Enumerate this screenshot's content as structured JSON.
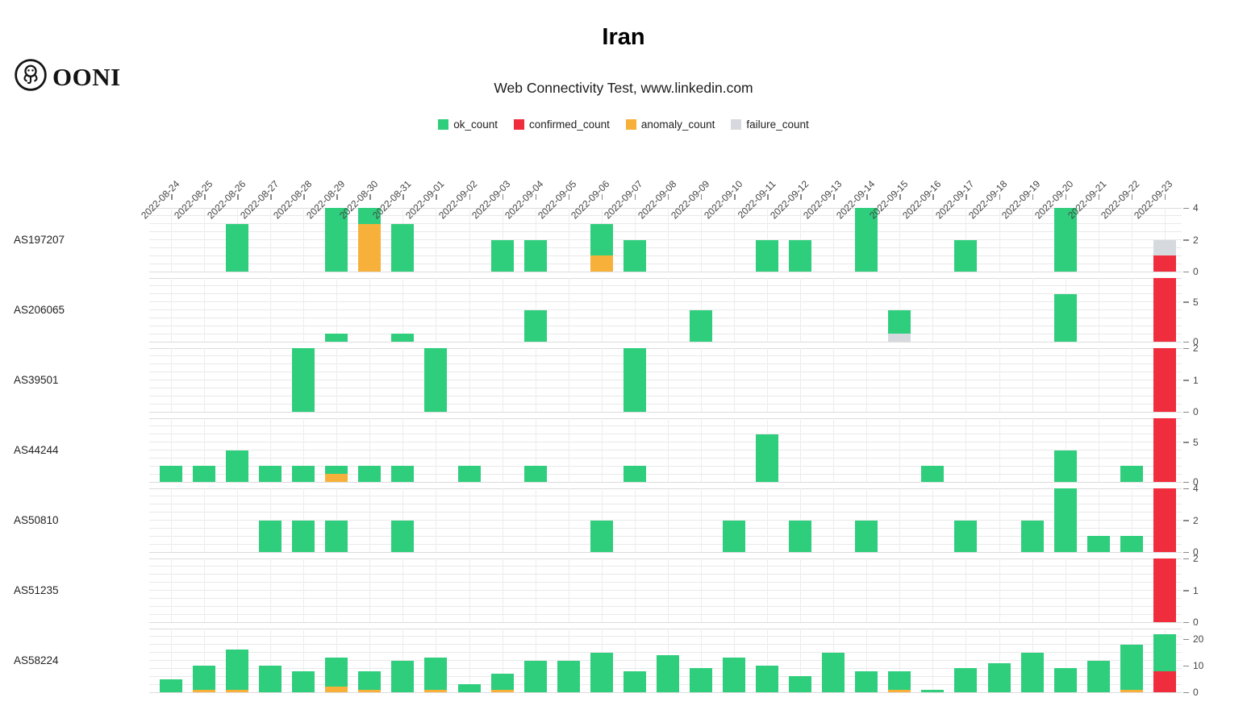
{
  "header": {
    "logo_text": "OONI",
    "title": "Iran",
    "subtitle": "Web Connectivity Test, www.linkedin.com"
  },
  "colors": {
    "ok": "#2fce7d",
    "confirmed": "#f02d3c",
    "anomaly": "#f7b13a",
    "failure": "#d6dade"
  },
  "legend": [
    {
      "label": "ok_count",
      "key": "ok"
    },
    {
      "label": "confirmed_count",
      "key": "confirmed"
    },
    {
      "label": "anomaly_count",
      "key": "anomaly"
    },
    {
      "label": "failure_count",
      "key": "failure"
    }
  ],
  "chart_data": {
    "type": "bar",
    "stacked": true,
    "grid": true,
    "legend_position": "top",
    "stack_order": [
      "confirmed",
      "anomaly",
      "failure",
      "ok"
    ],
    "x": [
      "2022-08-24",
      "2022-08-25",
      "2022-08-26",
      "2022-08-27",
      "2022-08-28",
      "2022-08-29",
      "2022-08-30",
      "2022-08-31",
      "2022-09-01",
      "2022-09-02",
      "2022-09-03",
      "2022-09-04",
      "2022-09-05",
      "2022-09-06",
      "2022-09-07",
      "2022-09-08",
      "2022-09-09",
      "2022-09-10",
      "2022-09-11",
      "2022-09-12",
      "2022-09-13",
      "2022-09-14",
      "2022-09-15",
      "2022-09-16",
      "2022-09-17",
      "2022-09-18",
      "2022-09-19",
      "2022-09-20",
      "2022-09-21",
      "2022-09-22",
      "2022-09-23"
    ],
    "rows": [
      {
        "label": "AS197207",
        "ylim": [
          0,
          4
        ],
        "yticks": [
          0,
          2,
          4
        ],
        "bars": {
          "2022-08-26": {
            "ok": 3
          },
          "2022-08-29": {
            "ok": 4
          },
          "2022-08-30": {
            "anomaly": 3,
            "ok": 1
          },
          "2022-08-31": {
            "ok": 3
          },
          "2022-09-03": {
            "ok": 2
          },
          "2022-09-04": {
            "ok": 2
          },
          "2022-09-06": {
            "anomaly": 1,
            "ok": 2
          },
          "2022-09-07": {
            "ok": 2
          },
          "2022-09-11": {
            "ok": 2
          },
          "2022-09-12": {
            "ok": 2
          },
          "2022-09-14": {
            "ok": 4
          },
          "2022-09-17": {
            "ok": 2
          },
          "2022-09-20": {
            "ok": 4
          },
          "2022-09-23": {
            "confirmed": 1,
            "failure": 1
          }
        }
      },
      {
        "label": "AS206065",
        "ylim": [
          0,
          8
        ],
        "yticks": [
          0,
          5
        ],
        "bars": {
          "2022-08-29": {
            "ok": 1
          },
          "2022-08-31": {
            "ok": 1
          },
          "2022-09-04": {
            "ok": 4
          },
          "2022-09-09": {
            "ok": 4
          },
          "2022-09-15": {
            "failure": 1,
            "ok": 3
          },
          "2022-09-20": {
            "ok": 6
          },
          "2022-09-23": {
            "confirmed": 8
          }
        }
      },
      {
        "label": "AS39501",
        "ylim": [
          0,
          2
        ],
        "yticks": [
          0,
          1,
          2
        ],
        "bars": {
          "2022-08-28": {
            "ok": 2
          },
          "2022-09-01": {
            "ok": 2
          },
          "2022-09-07": {
            "ok": 2
          },
          "2022-09-23": {
            "confirmed": 2
          }
        }
      },
      {
        "label": "AS44244",
        "ylim": [
          0,
          8
        ],
        "yticks": [
          0,
          5
        ],
        "bars": {
          "2022-08-24": {
            "ok": 2
          },
          "2022-08-25": {
            "ok": 2
          },
          "2022-08-26": {
            "ok": 4
          },
          "2022-08-27": {
            "ok": 2
          },
          "2022-08-28": {
            "ok": 2
          },
          "2022-08-29": {
            "anomaly": 1,
            "ok": 1
          },
          "2022-08-30": {
            "ok": 2
          },
          "2022-08-31": {
            "ok": 2
          },
          "2022-09-02": {
            "ok": 2
          },
          "2022-09-04": {
            "ok": 2
          },
          "2022-09-07": {
            "ok": 2
          },
          "2022-09-11": {
            "ok": 6
          },
          "2022-09-16": {
            "ok": 2
          },
          "2022-09-20": {
            "ok": 4
          },
          "2022-09-22": {
            "ok": 2
          },
          "2022-09-23": {
            "confirmed": 8
          }
        }
      },
      {
        "label": "AS50810",
        "ylim": [
          0,
          4
        ],
        "yticks": [
          0,
          2,
          4
        ],
        "bars": {
          "2022-08-27": {
            "ok": 2
          },
          "2022-08-28": {
            "ok": 2
          },
          "2022-08-29": {
            "ok": 2
          },
          "2022-08-31": {
            "ok": 2
          },
          "2022-09-06": {
            "ok": 2
          },
          "2022-09-10": {
            "ok": 2
          },
          "2022-09-12": {
            "ok": 2
          },
          "2022-09-14": {
            "ok": 2
          },
          "2022-09-17": {
            "ok": 2
          },
          "2022-09-19": {
            "ok": 2
          },
          "2022-09-20": {
            "ok": 4
          },
          "2022-09-21": {
            "ok": 1
          },
          "2022-09-22": {
            "ok": 1
          },
          "2022-09-23": {
            "confirmed": 4
          }
        }
      },
      {
        "label": "AS51235",
        "ylim": [
          0,
          2
        ],
        "yticks": [
          0,
          1,
          2
        ],
        "bars": {
          "2022-09-23": {
            "confirmed": 2
          }
        }
      },
      {
        "label": "AS58224",
        "ylim": [
          0,
          24
        ],
        "yticks": [
          0,
          10,
          20
        ],
        "bars": {
          "2022-08-24": {
            "ok": 5
          },
          "2022-08-25": {
            "anomaly": 1,
            "ok": 9
          },
          "2022-08-26": {
            "anomaly": 1,
            "ok": 15
          },
          "2022-08-27": {
            "ok": 10
          },
          "2022-08-28": {
            "ok": 8
          },
          "2022-08-29": {
            "anomaly": 2,
            "ok": 11
          },
          "2022-08-30": {
            "anomaly": 1,
            "ok": 7
          },
          "2022-08-31": {
            "ok": 12
          },
          "2022-09-01": {
            "anomaly": 1,
            "ok": 12
          },
          "2022-09-02": {
            "ok": 3
          },
          "2022-09-03": {
            "anomaly": 1,
            "ok": 6
          },
          "2022-09-04": {
            "ok": 12
          },
          "2022-09-05": {
            "ok": 12
          },
          "2022-09-06": {
            "ok": 15
          },
          "2022-09-07": {
            "ok": 8
          },
          "2022-09-08": {
            "ok": 14
          },
          "2022-09-09": {
            "ok": 9
          },
          "2022-09-10": {
            "ok": 13
          },
          "2022-09-11": {
            "ok": 10
          },
          "2022-09-12": {
            "ok": 6
          },
          "2022-09-13": {
            "ok": 15
          },
          "2022-09-14": {
            "ok": 8
          },
          "2022-09-15": {
            "anomaly": 1,
            "ok": 7
          },
          "2022-09-16": {
            "ok": 1
          },
          "2022-09-17": {
            "ok": 9
          },
          "2022-09-18": {
            "ok": 11
          },
          "2022-09-19": {
            "ok": 15
          },
          "2022-09-20": {
            "ok": 9
          },
          "2022-09-21": {
            "ok": 12
          },
          "2022-09-22": {
            "anomaly": 1,
            "ok": 17
          },
          "2022-09-23": {
            "confirmed": 8,
            "ok": 14
          }
        }
      }
    ]
  }
}
